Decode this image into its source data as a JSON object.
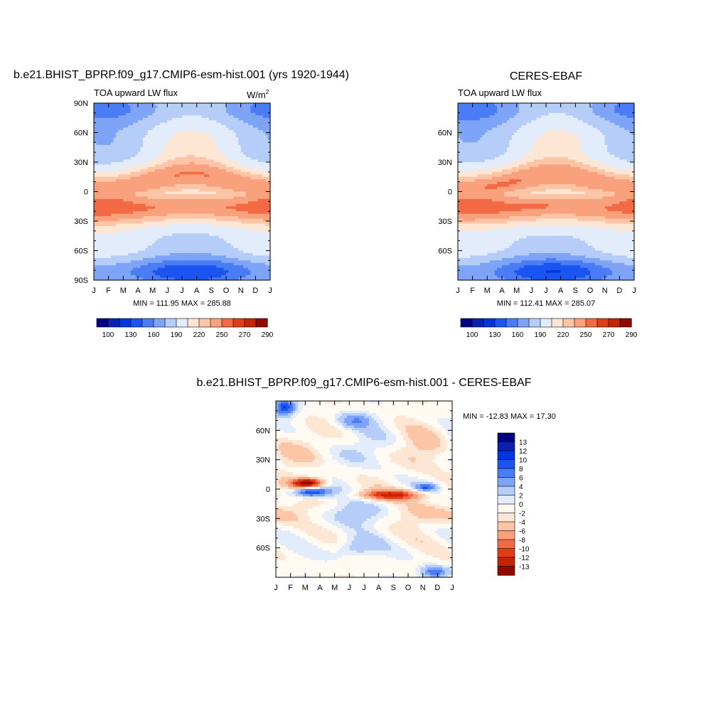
{
  "colors": {
    "abs_levels": [
      "#000080",
      "#0b1fb0",
      "#0035e0",
      "#1a55f0",
      "#4a7cf5",
      "#7ea4f7",
      "#b5cdf8",
      "#e2ecfb",
      "#fde7d4",
      "#fbc5a6",
      "#f9a07c",
      "#f26a44",
      "#e13c16",
      "#c32503",
      "#8e0a00"
    ],
    "diff_levels": [
      "#000080",
      "#0b1fb0",
      "#0035e0",
      "#1a55f0",
      "#4a7cf5",
      "#7ea4f7",
      "#b5cdf8",
      "#e2ecfb",
      "#fffaf2",
      "#fde7d4",
      "#fbc5a6",
      "#f9a07c",
      "#f26a44",
      "#e13c16",
      "#c32503",
      "#8e0a00"
    ]
  },
  "chart_data": [
    {
      "type": "heatmap",
      "title": "b.e21.BHIST_BPRP.f09_g17.CMIP6-esm-hist.001 (yrs 1920-1944)",
      "subtitle": "TOA upward LW flux",
      "units_main": "W/m",
      "units_sup": "2",
      "x_ticks": [
        "J",
        "F",
        "M",
        "A",
        "M",
        "J",
        "J",
        "A",
        "S",
        "O",
        "N",
        "D",
        "J"
      ],
      "y_ticks": [
        "90N",
        "60N",
        "30N",
        "0",
        "30S",
        "60S",
        "90S"
      ],
      "y_tick_values": [
        90,
        60,
        30,
        0,
        -30,
        -60,
        -90
      ],
      "stats": "MIN = 111.95 MAX = 285.88",
      "min": 111.95,
      "max": 285.88,
      "colorbar_labels": [
        "100",
        "130",
        "160",
        "190",
        "220",
        "250",
        "270",
        "290"
      ]
    },
    {
      "type": "heatmap",
      "title": "CERES-EBAF",
      "subtitle": "TOA upward LW flux",
      "x_ticks": [
        "J",
        "F",
        "M",
        "A",
        "M",
        "J",
        "J",
        "A",
        "S",
        "O",
        "N",
        "D",
        "J"
      ],
      "y_ticks": [
        "60N",
        "30N",
        "0",
        "30S",
        "60S"
      ],
      "y_tick_values": [
        60,
        30,
        0,
        -30,
        -60
      ],
      "stats": "MIN = 112.41 MAX = 285.07",
      "min": 112.41,
      "max": 285.07,
      "colorbar_labels": [
        "100",
        "130",
        "160",
        "190",
        "220",
        "250",
        "270",
        "290"
      ]
    },
    {
      "type": "heatmap",
      "title": "b.e21.BHIST_BPRP.f09_g17.CMIP6-esm-hist.001 - CERES-EBAF",
      "x_ticks": [
        "J",
        "F",
        "M",
        "A",
        "M",
        "J",
        "J",
        "A",
        "S",
        "O",
        "N",
        "D",
        "J"
      ],
      "y_ticks": [
        "60N",
        "30N",
        "0",
        "30S",
        "60S"
      ],
      "y_tick_values": [
        60,
        30,
        0,
        -30,
        -60
      ],
      "stats": "MIN = -12.83 MAX =  17.30",
      "min": -12.83,
      "max": 17.3,
      "colorbar_labels": [
        "13",
        "12",
        "10",
        "8",
        "6",
        "4",
        "2",
        "0",
        "-2",
        "-4",
        "-6",
        "-8",
        "-10",
        "-12",
        "-13"
      ]
    }
  ]
}
